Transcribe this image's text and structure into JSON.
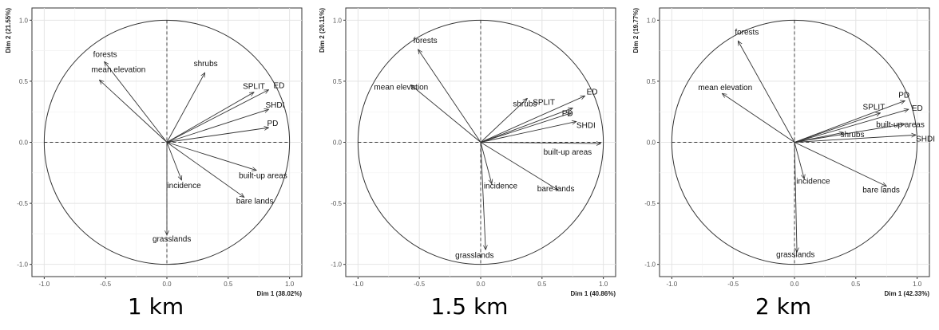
{
  "chart_data": [
    {
      "type": "scatter",
      "subtype": "pca-correlation-circle",
      "caption": "1 km",
      "xlabel": "Dim 1 (38.02%)",
      "ylabel": "Dim 2 (21.55%)",
      "xlim": [
        -1.1,
        1.1
      ],
      "ylim": [
        -1.1,
        1.1
      ],
      "xticks": [
        "-1.0",
        "-0.5",
        "0.0",
        "0.5",
        "1.0"
      ],
      "yticks": [
        "-1.0",
        "-0.5",
        "0.0",
        "0.5",
        "1.0"
      ],
      "grid": true,
      "vectors": [
        {
          "name": "forests",
          "x": -0.51,
          "y": 0.66
        },
        {
          "name": "mean elevation",
          "x": -0.55,
          "y": 0.51
        },
        {
          "name": "shrubs",
          "x": 0.31,
          "y": 0.57
        },
        {
          "name": "SPLIT",
          "x": 0.71,
          "y": 0.41
        },
        {
          "name": "ED",
          "x": 0.83,
          "y": 0.43
        },
        {
          "name": "SHDI",
          "x": 0.83,
          "y": 0.27
        },
        {
          "name": "PD",
          "x": 0.83,
          "y": 0.12
        },
        {
          "name": "built-up areas",
          "x": 0.73,
          "y": -0.23
        },
        {
          "name": "bare lands",
          "x": 0.63,
          "y": -0.45
        },
        {
          "name": "incidence",
          "x": 0.12,
          "y": -0.31
        },
        {
          "name": "grasslands",
          "x": 0.0,
          "y": -0.76
        }
      ]
    },
    {
      "type": "scatter",
      "subtype": "pca-correlation-circle",
      "caption": "1.5 km",
      "xlabel": "Dim 1 (40.86%)",
      "ylabel": "Dim 2 (20.11%)",
      "xlim": [
        -1.1,
        1.1
      ],
      "ylim": [
        -1.1,
        1.1
      ],
      "xticks": [
        "-1.0",
        "-0.5",
        "0.0",
        "0.5",
        "1.0"
      ],
      "yticks": [
        "-1.0",
        "-0.5",
        "0.0",
        "0.5",
        "1.0"
      ],
      "grid": true,
      "vectors": [
        {
          "name": "forests",
          "x": -0.51,
          "y": 0.76
        },
        {
          "name": "mean elevation",
          "x": -0.57,
          "y": 0.47
        },
        {
          "name": "shrubs",
          "x": 0.38,
          "y": 0.36
        },
        {
          "name": "SPLIT",
          "x": 0.75,
          "y": 0.28
        },
        {
          "name": "ED",
          "x": 0.85,
          "y": 0.38
        },
        {
          "name": "PD",
          "x": 0.74,
          "y": 0.24
        },
        {
          "name": "SHDI",
          "x": 0.78,
          "y": 0.17
        },
        {
          "name": "built-up areas",
          "x": 0.98,
          "y": -0.01
        },
        {
          "name": "bare lands",
          "x": 0.63,
          "y": -0.39
        },
        {
          "name": "incidence",
          "x": 0.09,
          "y": -0.34
        },
        {
          "name": "grasslands",
          "x": 0.04,
          "y": -0.88
        }
      ]
    },
    {
      "type": "scatter",
      "subtype": "pca-correlation-circle",
      "caption": "2 km",
      "xlabel": "Dim 1 (42.33%)",
      "ylabel": "Dim 2 (19.77%)",
      "xlim": [
        -1.1,
        1.1
      ],
      "ylim": [
        -1.1,
        1.1
      ],
      "xticks": [
        "-1.0",
        "-0.5",
        "0.0",
        "0.5",
        "1.0"
      ],
      "yticks": [
        "-1.0",
        "-0.5",
        "0.0",
        "0.5",
        "1.0"
      ],
      "grid": true,
      "vectors": [
        {
          "name": "forests",
          "x": -0.46,
          "y": 0.83
        },
        {
          "name": "mean elevation",
          "x": -0.59,
          "y": 0.4
        },
        {
          "name": "PD",
          "x": 0.9,
          "y": 0.34
        },
        {
          "name": "ED",
          "x": 0.93,
          "y": 0.27
        },
        {
          "name": "SPLIT",
          "x": 0.7,
          "y": 0.24
        },
        {
          "name": "shrubs",
          "x": 0.4,
          "y": 0.08
        },
        {
          "name": "built-up areas",
          "x": 0.9,
          "y": 0.15
        },
        {
          "name": "SHDI",
          "x": 0.99,
          "y": 0.06
        },
        {
          "name": "bare lands",
          "x": 0.75,
          "y": -0.36
        },
        {
          "name": "incidence",
          "x": 0.08,
          "y": -0.3
        },
        {
          "name": "grasslands",
          "x": 0.02,
          "y": -0.9
        }
      ]
    }
  ]
}
